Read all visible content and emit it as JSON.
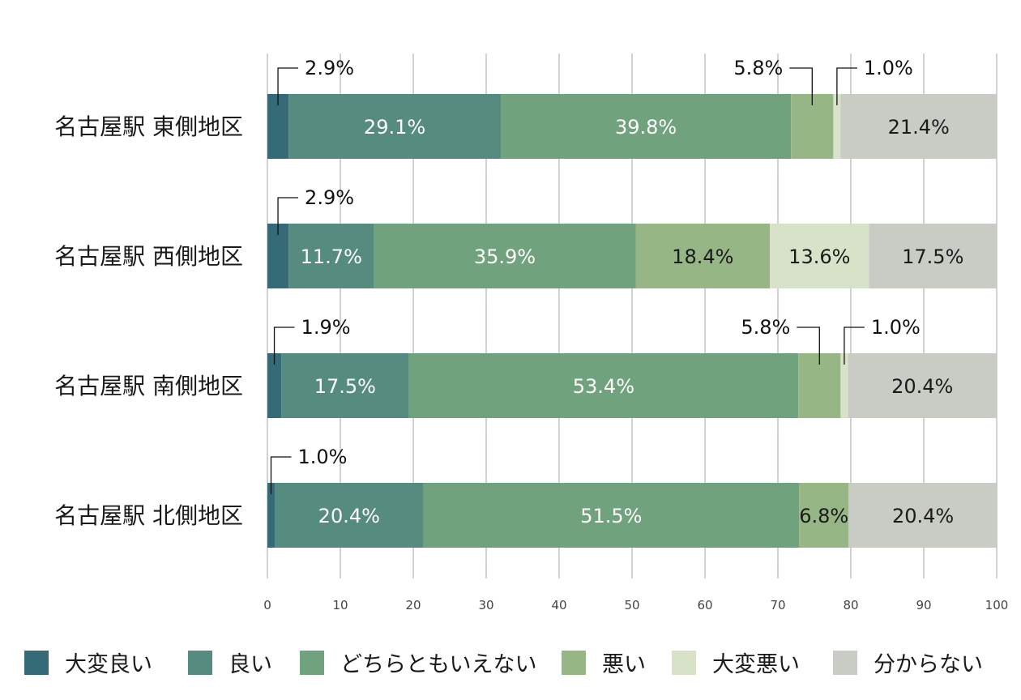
{
  "chart_data": {
    "type": "bar",
    "orientation": "horizontal",
    "stacked": true,
    "categories": [
      "名古屋駅 東側地区",
      "名古屋駅 西側地区",
      "名古屋駅 南側地区",
      "名古屋駅 北側地区"
    ],
    "series": [
      {
        "name": "大変良い",
        "color": "#346b76",
        "values": [
          2.9,
          2.9,
          1.9,
          1.0
        ],
        "labels": [
          "2.9%",
          "2.9%",
          "1.9%",
          "1.0%"
        ]
      },
      {
        "name": "良い",
        "color": "#568b7f",
        "values": [
          29.1,
          11.7,
          17.5,
          20.4
        ],
        "labels": [
          "29.1%",
          "11.7%",
          "17.5%",
          "20.4%"
        ]
      },
      {
        "name": "どちらともいえない",
        "color": "#70a27e",
        "values": [
          39.8,
          35.9,
          53.4,
          51.5
        ],
        "labels": [
          "39.8%",
          "35.9%",
          "53.4%",
          "51.5%"
        ]
      },
      {
        "name": "悪い",
        "color": "#96b785",
        "values": [
          5.8,
          18.4,
          5.8,
          6.8
        ],
        "labels": [
          "5.8%",
          "18.4%",
          "5.8%",
          "6.8%"
        ]
      },
      {
        "name": "大変悪い",
        "color": "#d8e2c8",
        "values": [
          1.0,
          13.6,
          1.0,
          0
        ],
        "labels": [
          "1.0%",
          "13.6%",
          "1.0%",
          ""
        ]
      },
      {
        "name": "分からない",
        "color": "#c8ccc5",
        "values": [
          21.4,
          17.5,
          20.4,
          20.4
        ],
        "labels": [
          "21.4%",
          "17.5%",
          "20.4%",
          "20.4%"
        ]
      }
    ],
    "xlim": [
      0,
      100
    ],
    "xticks": [
      "0",
      "10",
      "20",
      "30",
      "40",
      "50",
      "60",
      "70",
      "80",
      "90",
      "100"
    ],
    "grid": true,
    "legend_position": "bottom"
  }
}
